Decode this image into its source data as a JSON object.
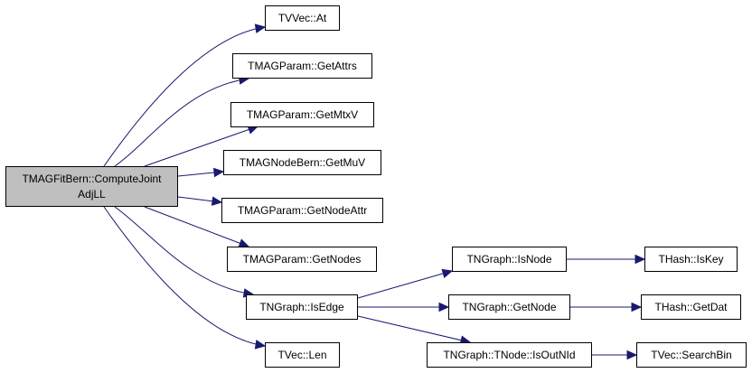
{
  "colors": {
    "edge": "#191970",
    "root_fill": "#bfbfbf",
    "node_fill": "#ffffff"
  },
  "nodes": [
    {
      "id": "root",
      "label": "TMAGFitBern::ComputeJoint\nAdjLL",
      "line1": "TMAGFitBern::ComputeJoint",
      "line2": "AdjLL"
    },
    {
      "id": "at",
      "label": "TVVec::At"
    },
    {
      "id": "getattrs",
      "label": "TMAGParam::GetAttrs"
    },
    {
      "id": "getmtxv",
      "label": "TMAGParam::GetMtxV"
    },
    {
      "id": "getmuv",
      "label": "TMAGNodeBern::GetMuV"
    },
    {
      "id": "getnodeattr",
      "label": "TMAGParam::GetNodeAttr"
    },
    {
      "id": "getnodes",
      "label": "TMAGParam::GetNodes"
    },
    {
      "id": "isedge",
      "label": "TNGraph::IsEdge"
    },
    {
      "id": "len",
      "label": "TVec::Len"
    },
    {
      "id": "isnode",
      "label": "TNGraph::IsNode"
    },
    {
      "id": "getnode",
      "label": "TNGraph::GetNode"
    },
    {
      "id": "isoutnid",
      "label": "TNGraph::TNode::IsOutNId"
    },
    {
      "id": "iskey",
      "label": "THash::IsKey"
    },
    {
      "id": "getdat",
      "label": "THash::GetDat"
    },
    {
      "id": "searchbin",
      "label": "TVec::SearchBin"
    }
  ],
  "edges": [
    [
      "root",
      "at"
    ],
    [
      "root",
      "getattrs"
    ],
    [
      "root",
      "getmtxv"
    ],
    [
      "root",
      "getmuv"
    ],
    [
      "root",
      "getnodeattr"
    ],
    [
      "root",
      "getnodes"
    ],
    [
      "root",
      "isedge"
    ],
    [
      "root",
      "len"
    ],
    [
      "isedge",
      "isnode"
    ],
    [
      "isedge",
      "getnode"
    ],
    [
      "isedge",
      "isoutnid"
    ],
    [
      "isnode",
      "iskey"
    ],
    [
      "getnode",
      "getdat"
    ],
    [
      "isoutnid",
      "searchbin"
    ]
  ]
}
